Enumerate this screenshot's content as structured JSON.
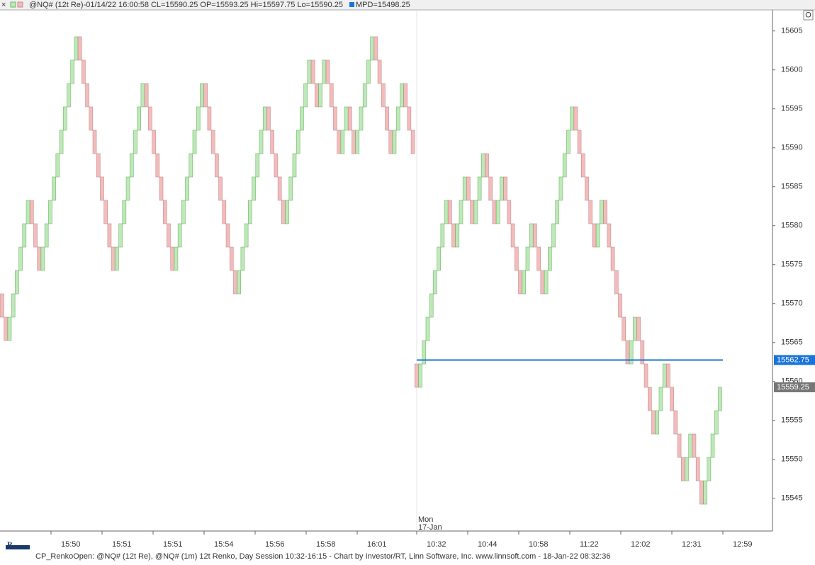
{
  "chart_data": {
    "type": "renko",
    "header": "@NQ# (12t Re)-01/14/22 16:00:58 CL=15590.25 OP=15593.25 Hi=15597.75 Lo=15590.25",
    "header_mpd": "MPD=15498.25",
    "footer": "CP_RenkoOpen: @NQ# (12t Re), @NQ# (1m) 12t Renko, Day Session 10:32-16:15 - Chart by Investor/RT, Linn Software, Inc. www.linnsoft.com - 18-Jan-22 08:32:36",
    "session_label": [
      "Mon",
      "17-Jan"
    ],
    "button": "O",
    "up_color": "#bfe8b9",
    "up_edge": "#6cb866",
    "down_color": "#f2bcbc",
    "down_edge": "#c98a8a",
    "line_value": 15562.75,
    "line_label": "15562.75",
    "line_color": "#1a73d9",
    "last_value": 15559.25,
    "last_label": "15559.25",
    "ylim": [
      15540.8,
      15607.7
    ],
    "yticks": [
      15545,
      15550,
      15555,
      15560,
      15565,
      15570,
      15575,
      15580,
      15585,
      15590,
      15595,
      15600,
      15605
    ],
    "x_labels": [
      "15:50",
      "15:51",
      "15:51",
      "15:54",
      "15:56",
      "15:58",
      "16:01",
      "10:32",
      "10:44",
      "10:58",
      "11:22",
      "12:02",
      "12:31",
      "12:59"
    ],
    "bricks": [
      [
        15571.25,
        15568.25
      ],
      [
        15568.25,
        15565.25
      ],
      [
        15565.25,
        15568.25
      ],
      [
        15568.25,
        15571.25
      ],
      [
        15571.25,
        15574.25
      ],
      [
        15574.25,
        15577.25
      ],
      [
        15577.25,
        15580.25
      ],
      [
        15580.25,
        15583.25
      ],
      [
        15583.25,
        15580.25
      ],
      [
        15580.25,
        15577.25
      ],
      [
        15577.25,
        15574.25
      ],
      [
        15574.25,
        15577.25
      ],
      [
        15577.25,
        15580.25
      ],
      [
        15580.25,
        15583.25
      ],
      [
        15583.25,
        15586.25
      ],
      [
        15586.25,
        15589.25
      ],
      [
        15589.25,
        15592.25
      ],
      [
        15592.25,
        15595.25
      ],
      [
        15595.25,
        15598.25
      ],
      [
        15598.25,
        15601.25
      ],
      [
        15601.25,
        15604.25
      ],
      [
        15604.25,
        15601.25
      ],
      [
        15601.25,
        15598.25
      ],
      [
        15598.25,
        15595.25
      ],
      [
        15595.25,
        15592.25
      ],
      [
        15592.25,
        15589.25
      ],
      [
        15589.25,
        15586.25
      ],
      [
        15586.25,
        15583.25
      ],
      [
        15583.25,
        15580.25
      ],
      [
        15580.25,
        15577.25
      ],
      [
        15577.25,
        15574.25
      ],
      [
        15574.25,
        15577.25
      ],
      [
        15577.25,
        15580.25
      ],
      [
        15580.25,
        15583.25
      ],
      [
        15583.25,
        15586.25
      ],
      [
        15586.25,
        15589.25
      ],
      [
        15589.25,
        15592.25
      ],
      [
        15592.25,
        15595.25
      ],
      [
        15595.25,
        15598.25
      ],
      [
        15598.25,
        15595.25
      ],
      [
        15595.25,
        15592.25
      ],
      [
        15592.25,
        15589.25
      ],
      [
        15589.25,
        15586.25
      ],
      [
        15586.25,
        15583.25
      ],
      [
        15583.25,
        15580.25
      ],
      [
        15580.25,
        15577.25
      ],
      [
        15577.25,
        15574.25
      ],
      [
        15574.25,
        15577.25
      ],
      [
        15577.25,
        15580.25
      ],
      [
        15580.25,
        15583.25
      ],
      [
        15583.25,
        15586.25
      ],
      [
        15586.25,
        15589.25
      ],
      [
        15589.25,
        15592.25
      ],
      [
        15592.25,
        15595.25
      ],
      [
        15595.25,
        15598.25
      ],
      [
        15598.25,
        15595.25
      ],
      [
        15595.25,
        15592.25
      ],
      [
        15592.25,
        15589.25
      ],
      [
        15589.25,
        15586.25
      ],
      [
        15586.25,
        15583.25
      ],
      [
        15583.25,
        15580.25
      ],
      [
        15580.25,
        15577.25
      ],
      [
        15577.25,
        15574.25
      ],
      [
        15574.25,
        15571.25
      ],
      [
        15571.25,
        15574.25
      ],
      [
        15574.25,
        15577.25
      ],
      [
        15577.25,
        15580.25
      ],
      [
        15580.25,
        15583.25
      ],
      [
        15583.25,
        15586.25
      ],
      [
        15586.25,
        15589.25
      ],
      [
        15589.25,
        15592.25
      ],
      [
        15592.25,
        15595.25
      ],
      [
        15595.25,
        15592.25
      ],
      [
        15592.25,
        15589.25
      ],
      [
        15589.25,
        15586.25
      ],
      [
        15586.25,
        15583.25
      ],
      [
        15583.25,
        15580.25
      ],
      [
        15580.25,
        15583.25
      ],
      [
        15583.25,
        15586.25
      ],
      [
        15586.25,
        15589.25
      ],
      [
        15589.25,
        15592.25
      ],
      [
        15592.25,
        15595.25
      ],
      [
        15595.25,
        15598.25
      ],
      [
        15598.25,
        15601.25
      ],
      [
        15601.25,
        15598.25
      ],
      [
        15598.25,
        15595.25
      ],
      [
        15595.25,
        15598.25
      ],
      [
        15598.25,
        15601.25
      ],
      [
        15601.25,
        15598.25
      ],
      [
        15598.25,
        15595.25
      ],
      [
        15595.25,
        15592.25
      ],
      [
        15592.25,
        15589.25
      ],
      [
        15589.25,
        15592.25
      ],
      [
        15592.25,
        15595.25
      ],
      [
        15595.25,
        15592.25
      ],
      [
        15592.25,
        15589.25
      ],
      [
        15589.25,
        15592.25
      ],
      [
        15592.25,
        15595.25
      ],
      [
        15595.25,
        15598.25
      ],
      [
        15598.25,
        15601.25
      ],
      [
        15601.25,
        15604.25
      ],
      [
        15604.25,
        15601.25
      ],
      [
        15601.25,
        15598.25
      ],
      [
        15598.25,
        15595.25
      ],
      [
        15595.25,
        15592.25
      ],
      [
        15592.25,
        15589.25
      ],
      [
        15589.25,
        15592.25
      ],
      [
        15592.25,
        15595.25
      ],
      [
        15595.25,
        15598.25
      ],
      [
        15598.25,
        15595.25
      ],
      [
        15595.25,
        15592.25
      ],
      [
        15592.25,
        15589.25
      ],
      [
        15562.25,
        15559.25
      ],
      [
        15559.25,
        15562.25
      ],
      [
        15562.25,
        15565.25
      ],
      [
        15565.25,
        15568.25
      ],
      [
        15568.25,
        15571.25
      ],
      [
        15571.25,
        15574.25
      ],
      [
        15574.25,
        15577.25
      ],
      [
        15577.25,
        15580.25
      ],
      [
        15580.25,
        15583.25
      ],
      [
        15583.25,
        15580.25
      ],
      [
        15580.25,
        15577.25
      ],
      [
        15577.25,
        15580.25
      ],
      [
        15580.25,
        15583.25
      ],
      [
        15583.25,
        15586.25
      ],
      [
        15586.25,
        15583.25
      ],
      [
        15583.25,
        15580.25
      ],
      [
        15580.25,
        15583.25
      ],
      [
        15583.25,
        15586.25
      ],
      [
        15586.25,
        15589.25
      ],
      [
        15589.25,
        15586.25
      ],
      [
        15586.25,
        15583.25
      ],
      [
        15583.25,
        15580.25
      ],
      [
        15580.25,
        15583.25
      ],
      [
        15583.25,
        15586.25
      ],
      [
        15586.25,
        15583.25
      ],
      [
        15583.25,
        15580.25
      ],
      [
        15580.25,
        15577.25
      ],
      [
        15577.25,
        15574.25
      ],
      [
        15574.25,
        15571.25
      ],
      [
        15571.25,
        15574.25
      ],
      [
        15574.25,
        15577.25
      ],
      [
        15577.25,
        15580.25
      ],
      [
        15580.25,
        15577.25
      ],
      [
        15577.25,
        15574.25
      ],
      [
        15574.25,
        15571.25
      ],
      [
        15571.25,
        15574.25
      ],
      [
        15574.25,
        15577.25
      ],
      [
        15577.25,
        15580.25
      ],
      [
        15580.25,
        15583.25
      ],
      [
        15583.25,
        15586.25
      ],
      [
        15586.25,
        15589.25
      ],
      [
        15589.25,
        15592.25
      ],
      [
        15592.25,
        15595.25
      ],
      [
        15595.25,
        15592.25
      ],
      [
        15592.25,
        15589.25
      ],
      [
        15589.25,
        15586.25
      ],
      [
        15586.25,
        15583.25
      ],
      [
        15583.25,
        15580.25
      ],
      [
        15580.25,
        15577.25
      ],
      [
        15577.25,
        15580.25
      ],
      [
        15580.25,
        15583.25
      ],
      [
        15583.25,
        15580.25
      ],
      [
        15580.25,
        15577.25
      ],
      [
        15577.25,
        15574.25
      ],
      [
        15574.25,
        15571.25
      ],
      [
        15571.25,
        15568.25
      ],
      [
        15568.25,
        15565.25
      ],
      [
        15565.25,
        15562.25
      ],
      [
        15562.25,
        15565.25
      ],
      [
        15565.25,
        15568.25
      ],
      [
        15568.25,
        15565.25
      ],
      [
        15565.25,
        15562.25
      ],
      [
        15562.25,
        15559.25
      ],
      [
        15559.25,
        15556.25
      ],
      [
        15556.25,
        15553.25
      ],
      [
        15553.25,
        15556.25
      ],
      [
        15556.25,
        15559.25
      ],
      [
        15559.25,
        15562.25
      ],
      [
        15562.25,
        15559.25
      ],
      [
        15559.25,
        15556.25
      ],
      [
        15556.25,
        15553.25
      ],
      [
        15553.25,
        15550.25
      ],
      [
        15550.25,
        15547.25
      ],
      [
        15547.25,
        15550.25
      ],
      [
        15550.25,
        15553.25
      ],
      [
        15553.25,
        15550.25
      ],
      [
        15550.25,
        15547.25
      ],
      [
        15547.25,
        15544.25
      ],
      [
        15544.25,
        15547.25
      ],
      [
        15547.25,
        15550.25
      ],
      [
        15550.25,
        15553.25
      ],
      [
        15553.25,
        15556.25
      ],
      [
        15556.25,
        15559.25
      ]
    ]
  }
}
